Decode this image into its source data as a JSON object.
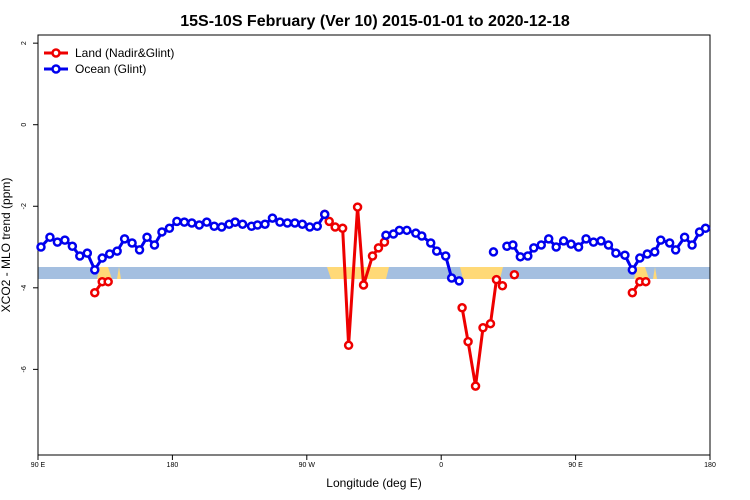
{
  "chart_data": {
    "type": "line",
    "title": "15S-10S February (Ver 10)   2015-01-01 to 2020-12-18",
    "x_label": "Longitude (deg E)",
    "y_label": "XCO2 - MLO trend (ppm)",
    "xlim": [
      90,
      540
    ],
    "xticks": [
      {
        "value": 90,
        "label": "90 E"
      },
      {
        "value": 180,
        "label": "180"
      },
      {
        "value": 270,
        "label": "90 W"
      },
      {
        "value": 360,
        "label": "0"
      },
      {
        "value": 450,
        "label": "90 E"
      },
      {
        "value": 540,
        "label": "180"
      }
    ],
    "ylim": [
      -8.1,
      2.2
    ],
    "yticks": [
      -6,
      -4,
      -2,
      0,
      2
    ],
    "legend": "top-left",
    "series": [
      {
        "name": "Land (Nadir&Glint)",
        "color": "#ee0000",
        "x": [
          128,
          133,
          137,
          null,
          222,
          null,
          282,
          285,
          289,
          294,
          298,
          304,
          308,
          314,
          318,
          322,
          null,
          374,
          378,
          383,
          388,
          393,
          397,
          401,
          null,
          409,
          null,
          488,
          493,
          497
        ],
        "values": [
          -4.12,
          -3.85,
          -3.85,
          null,
          -2.39,
          null,
          -2.2,
          -2.37,
          -2.51,
          -2.54,
          -5.41,
          -2.02,
          -3.93,
          -3.22,
          -3.02,
          -2.88,
          null,
          -4.49,
          -5.32,
          -6.41,
          -4.98,
          -4.88,
          -3.8,
          -3.95,
          null,
          -3.68,
          null,
          -4.12,
          -3.85,
          -3.85
        ]
      },
      {
        "name": "Ocean (Glint)",
        "color": "#0000ee",
        "x": [
          92,
          98,
          103,
          108,
          113,
          118,
          123,
          128,
          133,
          138,
          143,
          148,
          153,
          158,
          163,
          168,
          173,
          178,
          183,
          188,
          193,
          198,
          203,
          208,
          213,
          218,
          222,
          227,
          233,
          237,
          242,
          247,
          252,
          257,
          262,
          267,
          272,
          277,
          282,
          null,
          323,
          328,
          332,
          337,
          343,
          347,
          353,
          357,
          363,
          367,
          372,
          null,
          395,
          null,
          404,
          408,
          413,
          418,
          422,
          427,
          432,
          437,
          442,
          447,
          452,
          457,
          462,
          467,
          472,
          477,
          483,
          488,
          493,
          498,
          503,
          507,
          513,
          517,
          523,
          528,
          533,
          537
        ],
        "values": [
          -3.0,
          -2.76,
          -2.88,
          -2.83,
          -2.98,
          -3.22,
          -3.15,
          -3.56,
          -3.27,
          -3.17,
          -3.1,
          -2.8,
          -2.9,
          -3.07,
          -2.76,
          -2.95,
          -2.63,
          -2.54,
          -2.37,
          -2.39,
          -2.41,
          -2.46,
          -2.39,
          -2.49,
          -2.51,
          -2.44,
          -2.39,
          -2.44,
          -2.49,
          -2.46,
          -2.44,
          -2.29,
          -2.39,
          -2.41,
          -2.41,
          -2.44,
          -2.51,
          -2.49,
          -2.2,
          null,
          -2.71,
          -2.68,
          -2.59,
          -2.59,
          -2.66,
          -2.73,
          -2.9,
          -3.1,
          -3.22,
          -3.76,
          -3.83,
          null,
          -3.12,
          null,
          -2.98,
          -2.95,
          -3.24,
          -3.22,
          -3.02,
          -2.95,
          -2.8,
          -3.0,
          -2.85,
          -2.93,
          -3.0,
          -2.8,
          -2.88,
          -2.85,
          -2.95,
          -3.15,
          -3.2,
          -3.56,
          -3.27,
          -3.17,
          -3.12,
          -2.83,
          -2.9,
          -3.07,
          -2.76,
          -2.95,
          -2.63,
          -2.54
        ]
      }
    ]
  }
}
